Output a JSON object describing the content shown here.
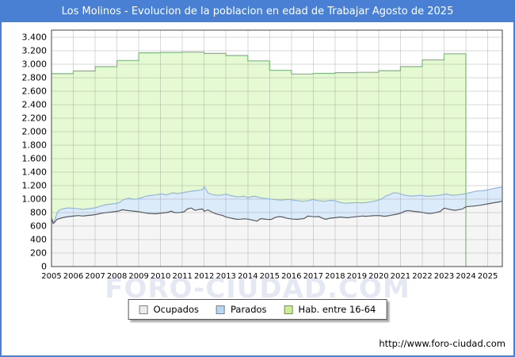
{
  "window": {
    "title": "Los Molinos - Evolucion de la poblacion en edad de Trabajar Agosto de 2025"
  },
  "watermark": {
    "text": "FORO-CIUDAD.COM"
  },
  "footer": {
    "url": "http://www.foro-ciudad.com"
  },
  "colors": {
    "titlebar": "#4a80d4",
    "frame": "#444444",
    "grid": "rgba(120,120,120,0.28)",
    "habitantes_fill": "#e5fad2",
    "habitantes_stroke": "#7db87d",
    "parados_fill": "#dcebfa",
    "parados_stroke": "#93b5e6",
    "ocupados_fill": "#f5f5f5",
    "ocupados_stroke": "#5a5a5a"
  },
  "legend": {
    "items": [
      {
        "label": "Ocupados",
        "swatch_fill": "#ececec",
        "swatch_border": "#808080"
      },
      {
        "label": "Parados",
        "swatch_fill": "#b9d7f1",
        "swatch_border": "#808080"
      },
      {
        "label": "Hab. entre 16-64",
        "swatch_fill": "#c9ef91",
        "swatch_border": "#808080"
      }
    ]
  },
  "chart_data": {
    "type": "area",
    "title": "Los Molinos - Evolucion de la poblacion en edad de Trabajar Agosto de 2025",
    "grid": true,
    "legend_position": "bottom",
    "x_axis": {
      "ticks": [
        2005,
        2006,
        2007,
        2008,
        2009,
        2010,
        2011,
        2012,
        2013,
        2014,
        2015,
        2016,
        2017,
        2018,
        2019,
        2020,
        2021,
        2022,
        2023,
        2024,
        2025
      ],
      "tick_labels": [
        "2005",
        "2006",
        "2007",
        "2008",
        "2009",
        "2010",
        "2011",
        "2012",
        "2013",
        "2014",
        "2015",
        "2016",
        "2017",
        "2018",
        "2019",
        "2020",
        "2021",
        "2022",
        "2023",
        "2024",
        "2025"
      ],
      "range": [
        2005,
        2025.67
      ]
    },
    "y_axis": {
      "tick_step": 200,
      "tick_labels": [
        "0",
        "200",
        "400",
        "600",
        "800",
        "1.000",
        "1.200",
        "1.400",
        "1.600",
        "1.800",
        "2.000",
        "2.200",
        "2.400",
        "2.600",
        "2.800",
        "3.000",
        "3.200",
        "3.400"
      ],
      "range": [
        0,
        3506
      ]
    },
    "series": [
      {
        "name": "Hab. entre 16-64",
        "type": "step-area",
        "fill": "#e5fad2",
        "stroke": "#7db87d",
        "years": [
          2005,
          2006,
          2007,
          2008,
          2009,
          2010,
          2011,
          2012,
          2013,
          2014,
          2015,
          2016,
          2017,
          2018,
          2019,
          2020,
          2021,
          2022,
          2023
        ],
        "values": [
          2860,
          2900,
          2965,
          3055,
          3170,
          3175,
          3180,
          3160,
          3130,
          3050,
          2910,
          2855,
          2865,
          2875,
          2880,
          2905,
          2965,
          3065,
          3155
        ],
        "ends_at": 2024.0
      },
      {
        "name": "Parados",
        "type": "area",
        "fill": "#dcebfa",
        "stroke": "#93b5e6",
        "points": [
          [
            2005.0,
            718
          ],
          [
            2005.08,
            655
          ],
          [
            2005.17,
            712
          ],
          [
            2005.25,
            788
          ],
          [
            2005.33,
            830
          ],
          [
            2005.42,
            848
          ],
          [
            2005.58,
            860
          ],
          [
            2005.75,
            870
          ],
          [
            2005.92,
            866
          ],
          [
            2006.08,
            862
          ],
          [
            2006.25,
            856
          ],
          [
            2006.42,
            850
          ],
          [
            2006.58,
            854
          ],
          [
            2006.75,
            860
          ],
          [
            2006.92,
            868
          ],
          [
            2007.08,
            878
          ],
          [
            2007.25,
            896
          ],
          [
            2007.42,
            912
          ],
          [
            2007.58,
            922
          ],
          [
            2007.75,
            928
          ],
          [
            2007.92,
            934
          ],
          [
            2008.08,
            944
          ],
          [
            2008.25,
            982
          ],
          [
            2008.42,
            1004
          ],
          [
            2008.58,
            1016
          ],
          [
            2008.75,
            996
          ],
          [
            2008.92,
            1004
          ],
          [
            2009.08,
            1014
          ],
          [
            2009.25,
            1036
          ],
          [
            2009.42,
            1048
          ],
          [
            2009.58,
            1054
          ],
          [
            2009.75,
            1062
          ],
          [
            2009.92,
            1070
          ],
          [
            2010.08,
            1076
          ],
          [
            2010.25,
            1062
          ],
          [
            2010.42,
            1080
          ],
          [
            2010.58,
            1094
          ],
          [
            2010.75,
            1082
          ],
          [
            2010.92,
            1090
          ],
          [
            2011.08,
            1100
          ],
          [
            2011.25,
            1108
          ],
          [
            2011.42,
            1118
          ],
          [
            2011.58,
            1124
          ],
          [
            2011.75,
            1132
          ],
          [
            2011.92,
            1140
          ],
          [
            2012.0,
            1186
          ],
          [
            2012.08,
            1148
          ],
          [
            2012.17,
            1092
          ],
          [
            2012.33,
            1072
          ],
          [
            2012.5,
            1060
          ],
          [
            2012.67,
            1056
          ],
          [
            2012.83,
            1064
          ],
          [
            2013.0,
            1074
          ],
          [
            2013.17,
            1056
          ],
          [
            2013.33,
            1046
          ],
          [
            2013.5,
            1034
          ],
          [
            2013.67,
            1038
          ],
          [
            2013.83,
            1044
          ],
          [
            2014.0,
            1020
          ],
          [
            2014.17,
            1036
          ],
          [
            2014.33,
            1044
          ],
          [
            2014.5,
            1026
          ],
          [
            2014.67,
            1016
          ],
          [
            2014.83,
            1010
          ],
          [
            2015.0,
            1004
          ],
          [
            2015.17,
            996
          ],
          [
            2015.33,
            990
          ],
          [
            2015.5,
            986
          ],
          [
            2015.67,
            990
          ],
          [
            2015.83,
            996
          ],
          [
            2016.0,
            990
          ],
          [
            2016.17,
            982
          ],
          [
            2016.33,
            976
          ],
          [
            2016.5,
            968
          ],
          [
            2016.67,
            974
          ],
          [
            2016.83,
            980
          ],
          [
            2017.0,
            996
          ],
          [
            2017.17,
            980
          ],
          [
            2017.33,
            974
          ],
          [
            2017.5,
            968
          ],
          [
            2017.67,
            976
          ],
          [
            2017.83,
            982
          ],
          [
            2018.0,
            976
          ],
          [
            2018.17,
            958
          ],
          [
            2018.33,
            946
          ],
          [
            2018.5,
            938
          ],
          [
            2018.67,
            942
          ],
          [
            2018.83,
            946
          ],
          [
            2019.0,
            950
          ],
          [
            2019.17,
            944
          ],
          [
            2019.33,
            948
          ],
          [
            2019.5,
            952
          ],
          [
            2019.67,
            962
          ],
          [
            2019.83,
            972
          ],
          [
            2020.0,
            986
          ],
          [
            2020.17,
            1010
          ],
          [
            2020.33,
            1048
          ],
          [
            2020.5,
            1066
          ],
          [
            2020.67,
            1092
          ],
          [
            2020.75,
            1096
          ],
          [
            2020.92,
            1086
          ],
          [
            2021.08,
            1070
          ],
          [
            2021.25,
            1054
          ],
          [
            2021.42,
            1048
          ],
          [
            2021.58,
            1046
          ],
          [
            2021.75,
            1052
          ],
          [
            2021.92,
            1056
          ],
          [
            2022.08,
            1048
          ],
          [
            2022.25,
            1042
          ],
          [
            2022.42,
            1046
          ],
          [
            2022.58,
            1050
          ],
          [
            2022.75,
            1056
          ],
          [
            2022.92,
            1064
          ],
          [
            2023.08,
            1078
          ],
          [
            2023.25,
            1064
          ],
          [
            2023.42,
            1058
          ],
          [
            2023.58,
            1062
          ],
          [
            2023.75,
            1068
          ],
          [
            2023.92,
            1076
          ],
          [
            2024.08,
            1088
          ],
          [
            2024.25,
            1102
          ],
          [
            2024.42,
            1114
          ],
          [
            2024.58,
            1122
          ],
          [
            2024.75,
            1126
          ],
          [
            2024.92,
            1134
          ],
          [
            2025.08,
            1144
          ],
          [
            2025.25,
            1156
          ],
          [
            2025.42,
            1166
          ],
          [
            2025.65,
            1178
          ]
        ]
      },
      {
        "name": "Ocupados",
        "type": "area",
        "fill": "#f5f5f5",
        "stroke": "#5a5a5a",
        "points": [
          [
            2005.0,
            715
          ],
          [
            2005.08,
            638
          ],
          [
            2005.17,
            668
          ],
          [
            2005.25,
            700
          ],
          [
            2005.42,
            718
          ],
          [
            2005.58,
            730
          ],
          [
            2005.75,
            740
          ],
          [
            2005.92,
            746
          ],
          [
            2006.08,
            752
          ],
          [
            2006.25,
            756
          ],
          [
            2006.42,
            750
          ],
          [
            2006.58,
            754
          ],
          [
            2006.75,
            760
          ],
          [
            2006.92,
            766
          ],
          [
            2007.08,
            774
          ],
          [
            2007.25,
            788
          ],
          [
            2007.42,
            796
          ],
          [
            2007.58,
            802
          ],
          [
            2007.75,
            810
          ],
          [
            2007.92,
            816
          ],
          [
            2008.08,
            822
          ],
          [
            2008.25,
            842
          ],
          [
            2008.42,
            834
          ],
          [
            2008.58,
            828
          ],
          [
            2008.75,
            822
          ],
          [
            2008.92,
            816
          ],
          [
            2009.08,
            810
          ],
          [
            2009.25,
            798
          ],
          [
            2009.42,
            790
          ],
          [
            2009.58,
            786
          ],
          [
            2009.75,
            782
          ],
          [
            2009.92,
            788
          ],
          [
            2010.08,
            794
          ],
          [
            2010.25,
            800
          ],
          [
            2010.42,
            812
          ],
          [
            2010.5,
            822
          ],
          [
            2010.58,
            806
          ],
          [
            2010.75,
            798
          ],
          [
            2010.92,
            804
          ],
          [
            2011.08,
            812
          ],
          [
            2011.25,
            858
          ],
          [
            2011.42,
            868
          ],
          [
            2011.58,
            834
          ],
          [
            2011.75,
            846
          ],
          [
            2011.92,
            854
          ],
          [
            2012.0,
            820
          ],
          [
            2012.17,
            840
          ],
          [
            2012.33,
            812
          ],
          [
            2012.5,
            786
          ],
          [
            2012.67,
            772
          ],
          [
            2012.83,
            760
          ],
          [
            2013.0,
            734
          ],
          [
            2013.17,
            722
          ],
          [
            2013.33,
            712
          ],
          [
            2013.5,
            700
          ],
          [
            2013.67,
            702
          ],
          [
            2013.83,
            708
          ],
          [
            2014.0,
            704
          ],
          [
            2014.17,
            692
          ],
          [
            2014.33,
            680
          ],
          [
            2014.42,
            674
          ],
          [
            2014.58,
            710
          ],
          [
            2014.75,
            706
          ],
          [
            2014.92,
            698
          ],
          [
            2015.08,
            700
          ],
          [
            2015.25,
            728
          ],
          [
            2015.42,
            740
          ],
          [
            2015.58,
            736
          ],
          [
            2015.75,
            720
          ],
          [
            2015.92,
            710
          ],
          [
            2016.08,
            704
          ],
          [
            2016.25,
            700
          ],
          [
            2016.42,
            706
          ],
          [
            2016.58,
            712
          ],
          [
            2016.75,
            748
          ],
          [
            2016.92,
            744
          ],
          [
            2017.08,
            738
          ],
          [
            2017.25,
            742
          ],
          [
            2017.42,
            716
          ],
          [
            2017.58,
            700
          ],
          [
            2017.75,
            716
          ],
          [
            2017.92,
            722
          ],
          [
            2018.08,
            728
          ],
          [
            2018.25,
            734
          ],
          [
            2018.42,
            728
          ],
          [
            2018.58,
            724
          ],
          [
            2018.75,
            732
          ],
          [
            2018.92,
            738
          ],
          [
            2019.08,
            744
          ],
          [
            2019.25,
            750
          ],
          [
            2019.42,
            746
          ],
          [
            2019.58,
            750
          ],
          [
            2019.75,
            754
          ],
          [
            2019.92,
            756
          ],
          [
            2020.08,
            754
          ],
          [
            2020.25,
            746
          ],
          [
            2020.42,
            752
          ],
          [
            2020.58,
            762
          ],
          [
            2020.75,
            772
          ],
          [
            2020.92,
            782
          ],
          [
            2021.08,
            800
          ],
          [
            2021.17,
            818
          ],
          [
            2021.33,
            830
          ],
          [
            2021.5,
            824
          ],
          [
            2021.67,
            816
          ],
          [
            2021.83,
            812
          ],
          [
            2022.0,
            804
          ],
          [
            2022.17,
            792
          ],
          [
            2022.33,
            786
          ],
          [
            2022.5,
            792
          ],
          [
            2022.67,
            804
          ],
          [
            2022.83,
            818
          ],
          [
            2023.0,
            866
          ],
          [
            2023.17,
            854
          ],
          [
            2023.33,
            842
          ],
          [
            2023.5,
            834
          ],
          [
            2023.67,
            844
          ],
          [
            2023.83,
            852
          ],
          [
            2024.0,
            886
          ],
          [
            2024.17,
            892
          ],
          [
            2024.33,
            896
          ],
          [
            2024.5,
            902
          ],
          [
            2024.67,
            910
          ],
          [
            2024.83,
            920
          ],
          [
            2025.0,
            930
          ],
          [
            2025.17,
            940
          ],
          [
            2025.33,
            948
          ],
          [
            2025.5,
            958
          ],
          [
            2025.65,
            968
          ]
        ]
      }
    ]
  }
}
